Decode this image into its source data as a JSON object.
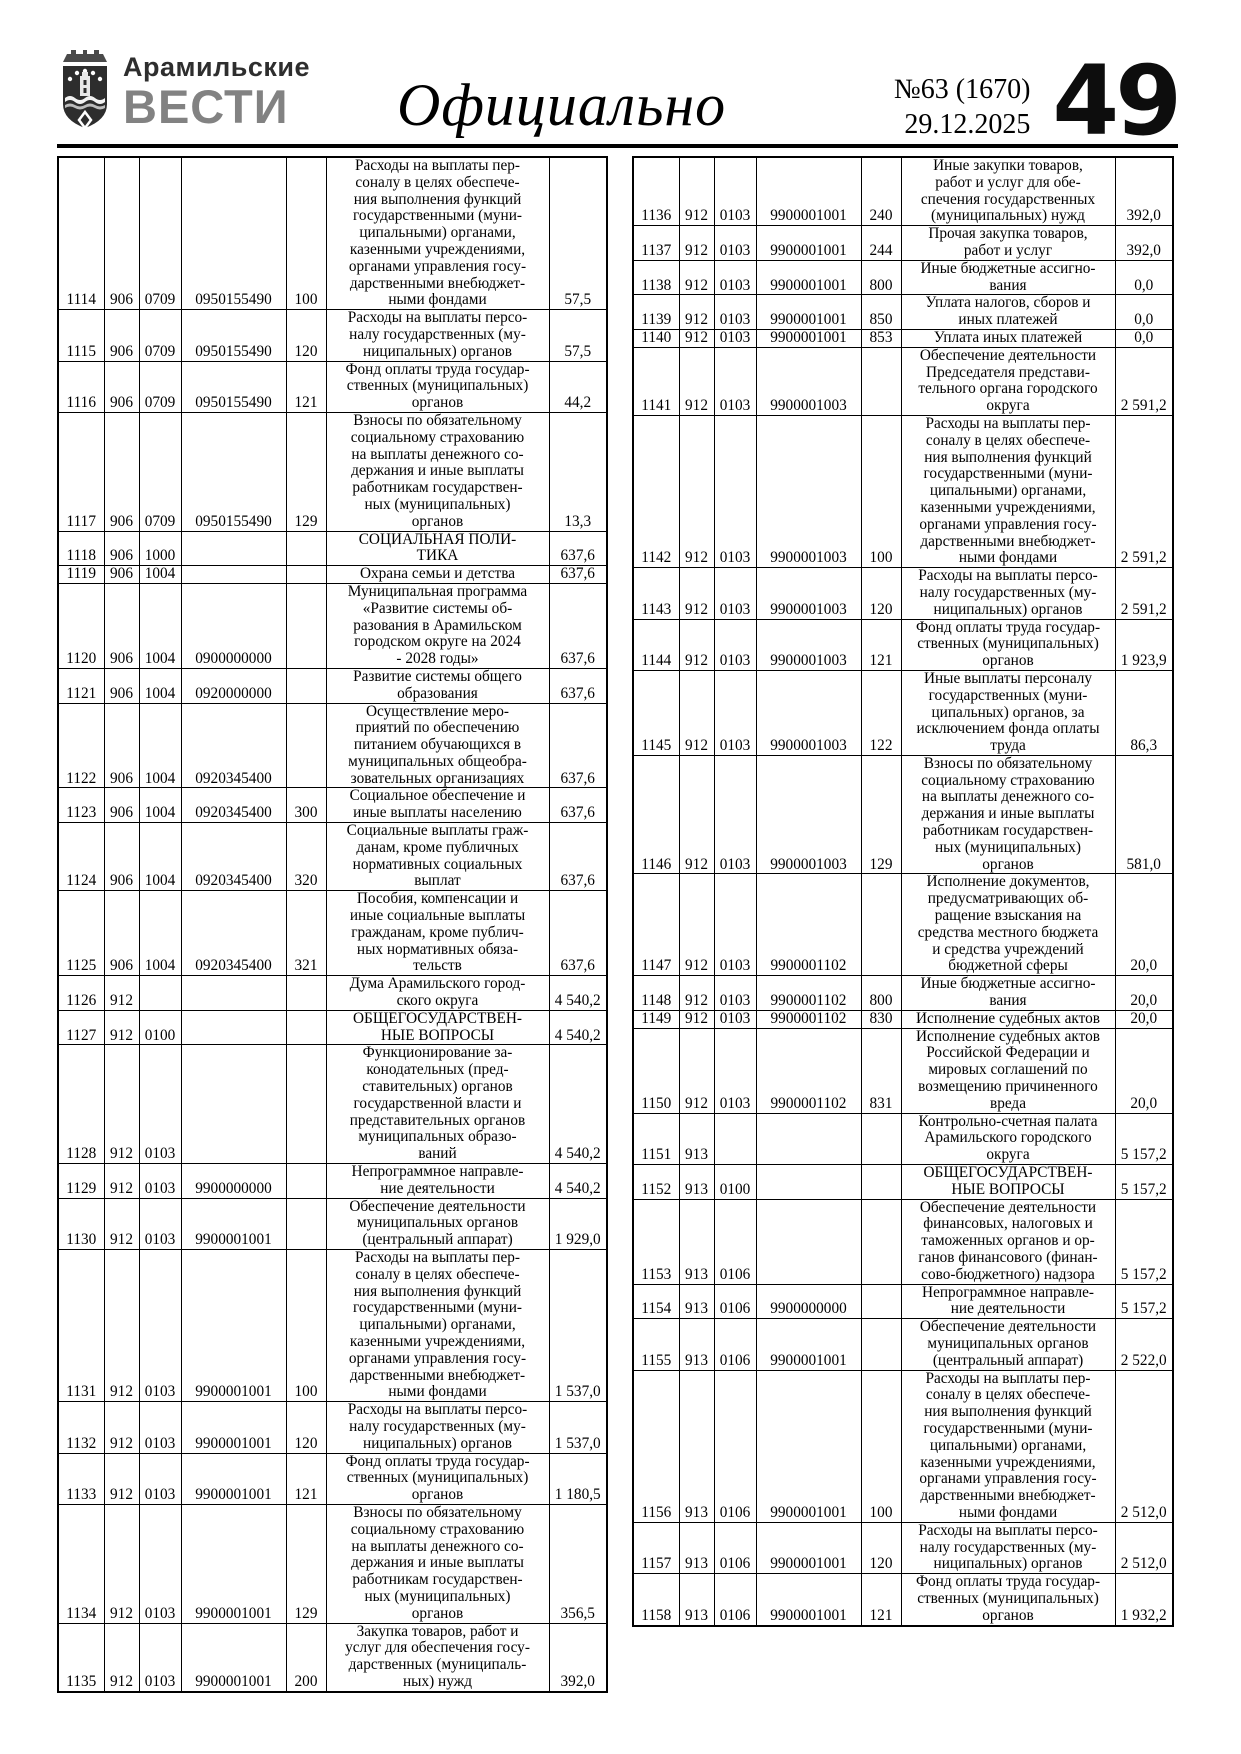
{
  "header": {
    "brand_top": "Арамильские",
    "brand_bottom": "ВЕСТИ",
    "section_title": "Официально",
    "issue_number": "№63 (1670)",
    "issue_date": "29.12.2025",
    "page_number": "49"
  },
  "table": {
    "left_rows": [
      [
        "1114",
        "906",
        "0709",
        "0950155490",
        "100",
        "Расходы на выплаты пер-\nсоналу в целях обеспече-\nния выполнения функций\nгосударственными (муни-\nципальными) органами,\nказенными учреждениями,\nорганами управления госу-\nдарственными внебюджет-\nными фондами",
        "57,5"
      ],
      [
        "1115",
        "906",
        "0709",
        "0950155490",
        "120",
        "Расходы на выплаты персо-\nналу государственных (му-\nниципальных) органов",
        "57,5"
      ],
      [
        "1116",
        "906",
        "0709",
        "0950155490",
        "121",
        "Фонд оплаты труда государ-\nственных (муниципальных)\nорганов",
        "44,2"
      ],
      [
        "1117",
        "906",
        "0709",
        "0950155490",
        "129",
        "Взносы по обязательному\nсоциальному страхованию\nна выплаты денежного со-\nдержания и иные выплаты\nработникам государствен-\nных (муниципальных)\nорганов",
        "13,3"
      ],
      [
        "1118",
        "906",
        "1000",
        "",
        "",
        "СОЦИАЛЬНАЯ ПОЛИ-\nТИКА",
        "637,6"
      ],
      [
        "1119",
        "906",
        "1004",
        "",
        "",
        "Охрана семьи и детства",
        "637,6"
      ],
      [
        "1120",
        "906",
        "1004",
        "0900000000",
        "",
        "Муниципальная программа\n«Развитие системы об-\nразования в Арамильском\nгородском округе на 2024\n- 2028 годы»",
        "637,6"
      ],
      [
        "1121",
        "906",
        "1004",
        "0920000000",
        "",
        "Развитие системы общего\nобразования",
        "637,6"
      ],
      [
        "1122",
        "906",
        "1004",
        "0920345400",
        "",
        "Осуществление меро-\nприятий по обеспечению\nпитанием обучающихся в\nмуниципальных общеобра-\nзовательных организациях",
        "637,6"
      ],
      [
        "1123",
        "906",
        "1004",
        "0920345400",
        "300",
        "Социальное обеспечение и\nиные выплаты населению",
        "637,6"
      ],
      [
        "1124",
        "906",
        "1004",
        "0920345400",
        "320",
        "Социальные выплаты граж-\nданам, кроме публичных\nнормативных социальных\nвыплат",
        "637,6"
      ],
      [
        "1125",
        "906",
        "1004",
        "0920345400",
        "321",
        "Пособия, компенсации и\nиные социальные выплаты\nгражданам, кроме публич-\nных нормативных обяза-\nтельств",
        "637,6"
      ],
      [
        "1126",
        "912",
        "",
        "",
        "",
        "Дума Арамильского город-\nского округа",
        "4 540,2"
      ],
      [
        "1127",
        "912",
        "0100",
        "",
        "",
        "ОБЩЕГОСУДАРСТВЕН-\nНЫЕ ВОПРОСЫ",
        "4 540,2"
      ],
      [
        "1128",
        "912",
        "0103",
        "",
        "",
        "Функционирование за-\nконодательных (пред-\nставительных) органов\nгосударственной власти и\nпредставительных органов\nмуниципальных образо-\nваний",
        "4 540,2"
      ],
      [
        "1129",
        "912",
        "0103",
        "9900000000",
        "",
        "Непрограммное направле-\nние деятельности",
        "4 540,2"
      ],
      [
        "1130",
        "912",
        "0103",
        "9900001001",
        "",
        "Обеспечение деятельности\nмуниципальных органов\n(центральный аппарат)",
        "1 929,0"
      ],
      [
        "1131",
        "912",
        "0103",
        "9900001001",
        "100",
        "Расходы на выплаты пер-\nсоналу в целях обеспече-\nния выполнения функций\nгосударственными (муни-\nципальными) органами,\nказенными учреждениями,\nорганами управления госу-\nдарственными внебюджет-\nными фондами",
        "1 537,0"
      ],
      [
        "1132",
        "912",
        "0103",
        "9900001001",
        "120",
        "Расходы на выплаты персо-\nналу государственных (му-\nниципальных) органов",
        "1 537,0"
      ],
      [
        "1133",
        "912",
        "0103",
        "9900001001",
        "121",
        "Фонд оплаты труда государ-\nственных (муниципальных)\nорганов",
        "1 180,5"
      ],
      [
        "1134",
        "912",
        "0103",
        "9900001001",
        "129",
        "Взносы по обязательному\nсоциальному страхованию\nна выплаты денежного со-\nдержания и иные выплаты\nработникам государствен-\nных (муниципальных)\nорганов",
        "356,5"
      ],
      [
        "1135",
        "912",
        "0103",
        "9900001001",
        "200",
        "Закупка товаров, работ и\nуслуг для обеспечения госу-\nдарственных (муниципаль-\nных) нужд",
        "392,0"
      ]
    ],
    "right_rows": [
      [
        "1136",
        "912",
        "0103",
        "9900001001",
        "240",
        "Иные закупки товаров,\nработ и услуг для обе-\nспечения государственных\n(муниципальных) нужд",
        "392,0"
      ],
      [
        "1137",
        "912",
        "0103",
        "9900001001",
        "244",
        "Прочая закупка товаров,\nработ и услуг",
        "392,0"
      ],
      [
        "1138",
        "912",
        "0103",
        "9900001001",
        "800",
        "Иные бюджетные ассигно-\nвания",
        "0,0"
      ],
      [
        "1139",
        "912",
        "0103",
        "9900001001",
        "850",
        "Уплата налогов, сборов и\nиных платежей",
        "0,0"
      ],
      [
        "1140",
        "912",
        "0103",
        "9900001001",
        "853",
        "Уплата иных платежей",
        "0,0"
      ],
      [
        "1141",
        "912",
        "0103",
        "9900001003",
        "",
        "Обеспечение деятельности\nПредседателя представи-\nтельного органа городского\nокруга",
        "2 591,2"
      ],
      [
        "1142",
        "912",
        "0103",
        "9900001003",
        "100",
        "Расходы на выплаты пер-\nсоналу в целях обеспече-\nния выполнения функций\nгосударственными (муни-\nципальными) органами,\nказенными учреждениями,\nорганами управления госу-\nдарственными внебюджет-\nными фондами",
        "2 591,2"
      ],
      [
        "1143",
        "912",
        "0103",
        "9900001003",
        "120",
        "Расходы на выплаты персо-\nналу государственных (му-\nниципальных) органов",
        "2 591,2"
      ],
      [
        "1144",
        "912",
        "0103",
        "9900001003",
        "121",
        "Фонд оплаты труда государ-\nственных (муниципальных)\nорганов",
        "1 923,9"
      ],
      [
        "1145",
        "912",
        "0103",
        "9900001003",
        "122",
        "Иные выплаты персоналу\nгосударственных (муни-\nципальных) органов, за\nисключением фонда оплаты\nтруда",
        "86,3"
      ],
      [
        "1146",
        "912",
        "0103",
        "9900001003",
        "129",
        "Взносы по обязательному\nсоциальному страхованию\nна выплаты денежного со-\nдержания и иные выплаты\nработникам государствен-\nных (муниципальных)\nорганов",
        "581,0"
      ],
      [
        "1147",
        "912",
        "0103",
        "9900001102",
        "",
        "Исполнение документов,\nпредусматривающих об-\nращение взыскания на\nсредства местного бюджета\nи средства учреждений\nбюджетной сферы",
        "20,0"
      ],
      [
        "1148",
        "912",
        "0103",
        "9900001102",
        "800",
        "Иные бюджетные ассигно-\nвания",
        "20,0"
      ],
      [
        "1149",
        "912",
        "0103",
        "9900001102",
        "830",
        "Исполнение судебных актов",
        "20,0"
      ],
      [
        "1150",
        "912",
        "0103",
        "9900001102",
        "831",
        "Исполнение судебных актов\nРоссийской Федерации и\nмировых соглашений по\nвозмещению причиненного\nвреда",
        "20,0"
      ],
      [
        "1151",
        "913",
        "",
        "",
        "",
        "Контрольно-счетная палата\nАрамильского городского\nокруга",
        "5 157,2"
      ],
      [
        "1152",
        "913",
        "0100",
        "",
        "",
        "ОБЩЕГОСУДАРСТВЕН-\nНЫЕ ВОПРОСЫ",
        "5 157,2"
      ],
      [
        "1153",
        "913",
        "0106",
        "",
        "",
        "Обеспечение деятельности\nфинансовых, налоговых и\nтаможенных органов и ор-\nганов финансового (финан-\nсово-бюджетного) надзора",
        "5 157,2"
      ],
      [
        "1154",
        "913",
        "0106",
        "9900000000",
        "",
        "Непрограммное направле-\nние деятельности",
        "5 157,2"
      ],
      [
        "1155",
        "913",
        "0106",
        "9900001001",
        "",
        "Обеспечение деятельности\nмуниципальных органов\n(центральный аппарат)",
        "2 522,0"
      ],
      [
        "1156",
        "913",
        "0106",
        "9900001001",
        "100",
        "Расходы на выплаты пер-\nсоналу в целях обеспече-\nния выполнения функций\nгосударственными (муни-\nципальными) органами,\nказенными учреждениями,\nорганами управления госу-\nдарственными внебюджет-\nными фондами",
        "2 512,0"
      ],
      [
        "1157",
        "913",
        "0106",
        "9900001001",
        "120",
        "Расходы на выплаты персо-\nналу государственных (му-\nниципальных) органов",
        "2 512,0"
      ],
      [
        "1158",
        "913",
        "0106",
        "9900001001",
        "121",
        "Фонд оплаты труда государ-\nственных (муниципальных)\nорганов",
        "1 932,2"
      ]
    ]
  }
}
